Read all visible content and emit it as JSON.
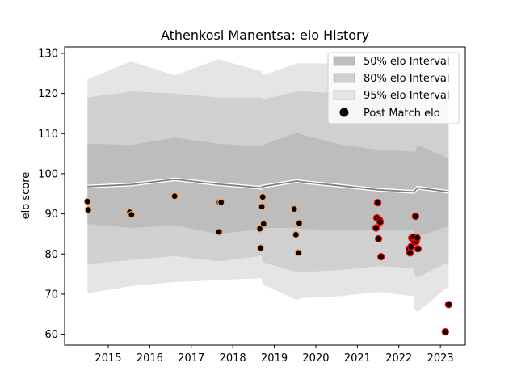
{
  "chart_data": {
    "type": "scatter",
    "title": "Athenkosi Manentsa: elo History",
    "xlabel": "",
    "ylabel": "elo score",
    "xlim": [
      2013.95,
      2023.6
    ],
    "ylim": [
      57.3,
      131.6
    ],
    "x_ticks": [
      2015,
      2016,
      2017,
      2018,
      2019,
      2020,
      2021,
      2022,
      2023
    ],
    "y_ticks": [
      60,
      70,
      80,
      90,
      100,
      110,
      120,
      130
    ],
    "grid": false,
    "legend_position": "top-right",
    "legend": [
      "50% elo Interval",
      "80% elo Interval",
      "95% elo Interval",
      "Post Match elo"
    ],
    "bands": {
      "x": [
        2014.5,
        2015.55,
        2016.6,
        2017.65,
        2018.7,
        2018.71,
        2019.55,
        2019.65,
        2020.6,
        2021.5,
        2022.35,
        2022.36,
        2022.45,
        2023.2
      ],
      "p95_upper": [
        123.5,
        128.0,
        124.5,
        128.5,
        125.5,
        124.5,
        127.5,
        127.5,
        127.5,
        127.5,
        127.5,
        124.5,
        121.5,
        118.0
      ],
      "p80_upper": [
        119.0,
        120.5,
        120.0,
        119.0,
        119.0,
        118.5,
        120.5,
        120.5,
        120.0,
        120.0,
        119.5,
        118.0,
        115.5,
        112.0
      ],
      "p50_upper": [
        107.5,
        107.2,
        109.0,
        107.5,
        106.8,
        107.2,
        110.2,
        109.8,
        107.3,
        106.0,
        105.5,
        104.5,
        107.2,
        103.8
      ],
      "median": [
        96.8,
        97.3,
        98.6,
        97.4,
        96.5,
        96.8,
        98.2,
        98.0,
        97.0,
        96.0,
        95.5,
        95.5,
        96.5,
        95.5
      ],
      "p50_lower": [
        87.5,
        86.5,
        87.2,
        85.0,
        86.2,
        86.5,
        86.5,
        86.2,
        86.0,
        86.0,
        86.0,
        84.5,
        84.3,
        87.0
      ],
      "p80_lower": [
        77.5,
        78.5,
        79.5,
        78.2,
        79.5,
        78.0,
        75.5,
        75.5,
        76.0,
        77.0,
        76.5,
        75.0,
        74.2,
        78.0
      ],
      "p95_lower": [
        70.2,
        72.0,
        73.0,
        73.5,
        74.0,
        72.5,
        68.5,
        69.0,
        69.5,
        70.5,
        69.5,
        66.5,
        65.5,
        72.0
      ]
    },
    "points": [
      {
        "x": 2014.5,
        "y": 93.1
      },
      {
        "x": 2014.52,
        "y": 91.0
      },
      {
        "x": 2015.52,
        "y": 90.4
      },
      {
        "x": 2015.56,
        "y": 89.8
      },
      {
        "x": 2016.6,
        "y": 94.4
      },
      {
        "x": 2017.68,
        "y": 92.9
      },
      {
        "x": 2017.72,
        "y": 92.9
      },
      {
        "x": 2017.67,
        "y": 85.5
      },
      {
        "x": 2018.65,
        "y": 86.3
      },
      {
        "x": 2018.67,
        "y": 81.5
      },
      {
        "x": 2018.7,
        "y": 91.8
      },
      {
        "x": 2018.72,
        "y": 94.2
      },
      {
        "x": 2018.74,
        "y": 87.5
      },
      {
        "x": 2019.48,
        "y": 91.2
      },
      {
        "x": 2019.52,
        "y": 84.8
      },
      {
        "x": 2019.6,
        "y": 87.7
      },
      {
        "x": 2019.58,
        "y": 80.3
      },
      {
        "x": 2021.45,
        "y": 86.5
      },
      {
        "x": 2021.47,
        "y": 89.0
      },
      {
        "x": 2021.49,
        "y": 92.8
      },
      {
        "x": 2021.51,
        "y": 83.8
      },
      {
        "x": 2021.53,
        "y": 88.5
      },
      {
        "x": 2021.55,
        "y": 88.0
      },
      {
        "x": 2021.57,
        "y": 79.3
      },
      {
        "x": 2022.25,
        "y": 81.3
      },
      {
        "x": 2022.27,
        "y": 80.3
      },
      {
        "x": 2022.29,
        "y": 81.8
      },
      {
        "x": 2022.31,
        "y": 84.0
      },
      {
        "x": 2022.35,
        "y": 84.2
      },
      {
        "x": 2022.38,
        "y": 83.0
      },
      {
        "x": 2022.4,
        "y": 89.4
      },
      {
        "x": 2022.42,
        "y": 83.2
      },
      {
        "x": 2022.44,
        "y": 84.0
      },
      {
        "x": 2022.46,
        "y": 81.3
      },
      {
        "x": 2023.12,
        "y": 60.6
      },
      {
        "x": 2023.2,
        "y": 67.4
      }
    ]
  },
  "colors": {
    "band_95": "#e5e5e5",
    "band_80": "#d0d0d0",
    "band_50": "#bdbdbd",
    "median_line": "#808080",
    "median_glow": "#ffffff",
    "point_fill": "#000000",
    "point_edge_early": "#f4a460",
    "point_edge_late": "#ff0000"
  }
}
